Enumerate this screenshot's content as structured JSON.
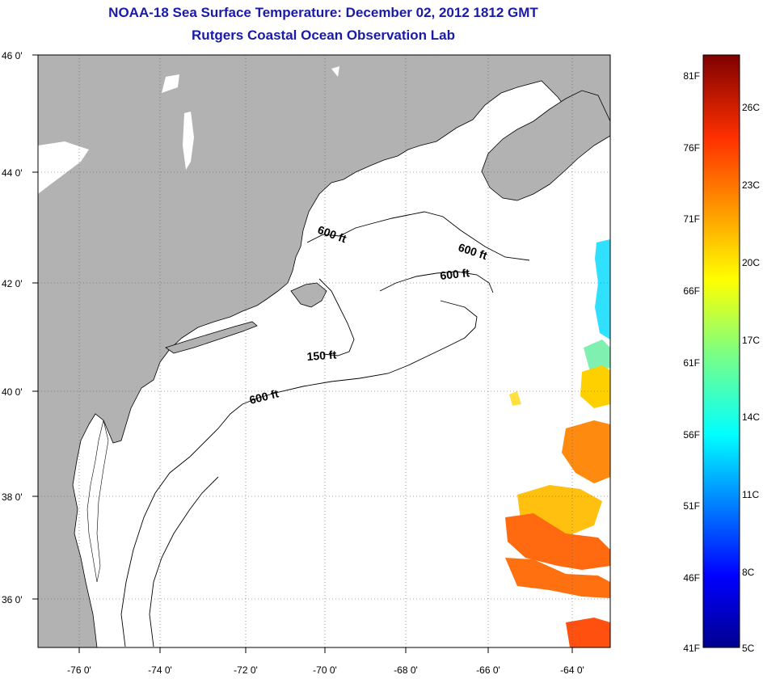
{
  "title": "NOAA-18 Sea Surface Temperature:  December 02, 2012 1812 GMT",
  "subtitle": "Rutgers Coastal Ocean Observation Lab",
  "lon_ticks": [
    "-76 0'",
    "-74 0'",
    "-72 0'",
    "-70 0'",
    "-68 0'",
    "-66 0'",
    "-64 0'"
  ],
  "lat_ticks": [
    "46 0'",
    "44 0'",
    "42 0'",
    "40 0'",
    "38 0'",
    "36 0'"
  ],
  "contour_labels": [
    "600 ft",
    "600 ft",
    "600 ft",
    "150 ft",
    "600 ft"
  ],
  "colorbar": {
    "fahrenheit": [
      "81F",
      "76F",
      "71F",
      "66F",
      "61F",
      "56F",
      "51F",
      "46F",
      "41F"
    ],
    "celsius": [
      "26C",
      "23C",
      "20C",
      "17C",
      "14C",
      "11C",
      "8C",
      "5C"
    ]
  },
  "colors": {
    "land": "#b2b2b2",
    "ocean": "#ffffff",
    "title": "#1a1aa8"
  }
}
